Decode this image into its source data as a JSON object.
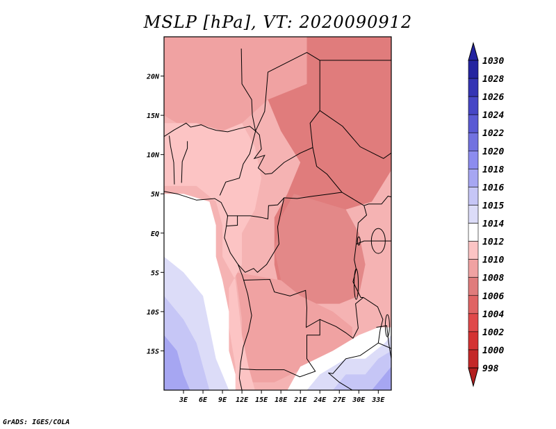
{
  "title": "MSLP [hPa], VT: 2020090912",
  "footer": "GrADS: IGES/COLA",
  "map": {
    "lon_range": [
      0,
      35
    ],
    "lat_range": [
      -20,
      25
    ],
    "x_ticks": [
      {
        "lon": 3,
        "label": "3E"
      },
      {
        "lon": 6,
        "label": "6E"
      },
      {
        "lon": 9,
        "label": "9E"
      },
      {
        "lon": 12,
        "label": "12E"
      },
      {
        "lon": 15,
        "label": "15E"
      },
      {
        "lon": 18,
        "label": "18E"
      },
      {
        "lon": 21,
        "label": "21E"
      },
      {
        "lon": 24,
        "label": "24E"
      },
      {
        "lon": 27,
        "label": "27E"
      },
      {
        "lon": 30,
        "label": "30E"
      },
      {
        "lon": 33,
        "label": "33E"
      }
    ],
    "y_ticks": [
      {
        "lat": 20,
        "label": "20N"
      },
      {
        "lat": 15,
        "label": "15N"
      },
      {
        "lat": 10,
        "label": "10N"
      },
      {
        "lat": 5,
        "label": "5N"
      },
      {
        "lat": 0,
        "label": "EQ"
      },
      {
        "lat": -5,
        "label": "5S"
      },
      {
        "lat": -10,
        "label": "10S"
      },
      {
        "lat": -15,
        "label": "15S"
      }
    ],
    "field_regions": [
      {
        "name": "northeast-low",
        "pressure": 1005,
        "color": "#e0494a",
        "polygon": [
          [
            29,
            20
          ],
          [
            32,
            19
          ],
          [
            34,
            20
          ],
          [
            35,
            23
          ],
          [
            35,
            25
          ],
          [
            33,
            25
          ],
          [
            31,
            24
          ],
          [
            29,
            22
          ]
        ]
      },
      {
        "name": "sahara-trough",
        "pressure": 1007,
        "color": "#e07c7c",
        "polygon": [
          [
            22,
            25
          ],
          [
            35,
            25
          ],
          [
            35,
            8
          ],
          [
            32,
            4
          ],
          [
            28,
            3
          ],
          [
            26,
            0
          ],
          [
            24,
            -3
          ],
          [
            21,
            -7
          ],
          [
            18,
            -8
          ],
          [
            17,
            -4
          ],
          [
            17,
            2
          ],
          [
            19,
            5
          ],
          [
            21,
            9
          ],
          [
            18,
            13
          ],
          [
            16,
            17
          ],
          [
            13,
            18
          ],
          [
            10,
            18
          ],
          [
            6,
            19
          ],
          [
            4,
            20
          ],
          [
            2,
            22
          ],
          [
            3,
            25
          ]
        ]
      },
      {
        "name": "congo-basin-low",
        "pressure": 1008,
        "color": "#e38888",
        "polygon": [
          [
            20,
            5
          ],
          [
            24,
            4
          ],
          [
            28,
            3
          ],
          [
            30,
            0
          ],
          [
            31,
            -4
          ],
          [
            30,
            -8
          ],
          [
            27,
            -9
          ],
          [
            23,
            -9
          ],
          [
            20,
            -8
          ],
          [
            18,
            -6
          ],
          [
            17,
            -2
          ],
          [
            18,
            2
          ]
        ]
      },
      {
        "name": "central-africa",
        "pressure": 1009,
        "color": "#f0a2a2",
        "polygon": [
          [
            0,
            25
          ],
          [
            22,
            25
          ],
          [
            22,
            19
          ],
          [
            16,
            17
          ],
          [
            12,
            14
          ],
          [
            9,
            13
          ],
          [
            5,
            14
          ],
          [
            2,
            14
          ],
          [
            0,
            15
          ]
        ]
      },
      {
        "name": "angola-region",
        "pressure": 1009,
        "color": "#f0a2a2",
        "polygon": [
          [
            11,
            -5
          ],
          [
            18,
            -6
          ],
          [
            21,
            -8
          ],
          [
            26,
            -10
          ],
          [
            29,
            -12
          ],
          [
            29,
            -14
          ],
          [
            26,
            -16
          ],
          [
            22,
            -17
          ],
          [
            17,
            -19
          ],
          [
            13,
            -19
          ],
          [
            12,
            -16
          ],
          [
            12,
            -11
          ]
        ]
      },
      {
        "name": "gulf-coast-band",
        "pressure": 1011,
        "color": "#fcc4c4",
        "polygon": [
          [
            0,
            14
          ],
          [
            5,
            14
          ],
          [
            9,
            13
          ],
          [
            12,
            14
          ],
          [
            14,
            11
          ],
          [
            15,
            7
          ],
          [
            14,
            3
          ],
          [
            12,
            0
          ],
          [
            12,
            -4
          ],
          [
            10,
            -7
          ],
          [
            10,
            -12
          ],
          [
            11,
            -17
          ],
          [
            11,
            -20
          ],
          [
            14,
            -20
          ],
          [
            13,
            -17
          ],
          [
            12,
            -13
          ],
          [
            11,
            -6
          ],
          [
            9,
            -3
          ],
          [
            9,
            1
          ],
          [
            8,
            4
          ],
          [
            5,
            6
          ],
          [
            2,
            6
          ],
          [
            0,
            6
          ]
        ]
      },
      {
        "name": "atlantic-coast-white",
        "pressure": 1014,
        "color": "#ffffff",
        "polygon": [
          [
            0,
            5
          ],
          [
            3,
            5
          ],
          [
            7,
            4
          ],
          [
            8,
            1
          ],
          [
            8,
            -3
          ],
          [
            9,
            -6
          ],
          [
            10,
            -10
          ],
          [
            10,
            -15
          ],
          [
            11,
            -18
          ],
          [
            11,
            -20
          ],
          [
            0,
            -20
          ]
        ]
      },
      {
        "name": "atlantic-pale-blue",
        "pressure": 1015,
        "color": "#dcdcf8",
        "polygon": [
          [
            0,
            -3
          ],
          [
            3,
            -5
          ],
          [
            6,
            -8
          ],
          [
            7,
            -12
          ],
          [
            8,
            -16
          ],
          [
            10,
            -20
          ],
          [
            0,
            -20
          ]
        ]
      },
      {
        "name": "atlantic-light-blue",
        "pressure": 1016,
        "color": "#c6c6f6",
        "polygon": [
          [
            0,
            -8
          ],
          [
            3,
            -11
          ],
          [
            5,
            -14
          ],
          [
            6,
            -17
          ],
          [
            7,
            -20
          ],
          [
            0,
            -20
          ]
        ]
      },
      {
        "name": "atlantic-blue",
        "pressure": 1018,
        "color": "#a6a6f2",
        "polygon": [
          [
            0,
            -13
          ],
          [
            2,
            -15
          ],
          [
            3,
            -18
          ],
          [
            4,
            -20
          ],
          [
            0,
            -20
          ]
        ]
      },
      {
        "name": "southern-africa-white",
        "pressure": 1014,
        "color": "#ffffff",
        "polygon": [
          [
            19,
            -20
          ],
          [
            21,
            -17
          ],
          [
            26,
            -15
          ],
          [
            30,
            -13
          ],
          [
            33,
            -12
          ],
          [
            35,
            -12
          ],
          [
            35,
            -20
          ]
        ]
      },
      {
        "name": "southern-africa-pale",
        "pressure": 1015,
        "color": "#dcdcf8",
        "polygon": [
          [
            22,
            -20
          ],
          [
            24,
            -18
          ],
          [
            28,
            -16
          ],
          [
            31,
            -16
          ],
          [
            34,
            -14
          ],
          [
            35,
            -13
          ],
          [
            35,
            -20
          ]
        ]
      },
      {
        "name": "southern-africa-blue",
        "pressure": 1016,
        "color": "#c6c6f6",
        "polygon": [
          [
            26,
            -20
          ],
          [
            28,
            -18
          ],
          [
            31,
            -18
          ],
          [
            33,
            -16
          ],
          [
            35,
            -15
          ],
          [
            35,
            -20
          ]
        ]
      },
      {
        "name": "southeast-corner-blue",
        "pressure": 1018,
        "color": "#a6a6f2",
        "polygon": [
          [
            32,
            -20
          ],
          [
            34,
            -18
          ],
          [
            35,
            -17
          ],
          [
            35,
            -20
          ]
        ]
      }
    ]
  },
  "colorbar": {
    "levels": [
      "998",
      "1000",
      "1002",
      "1004",
      "1006",
      "1008",
      "1010",
      "1012",
      "1014",
      "1015",
      "1016",
      "1018",
      "1020",
      "1022",
      "1024",
      "1026",
      "1028",
      "1030"
    ],
    "colors": [
      "#b41f1f",
      "#c42828",
      "#d43232",
      "#e0494a",
      "#e06464",
      "#e07c7c",
      "#f0a2a2",
      "#fcc4c4",
      "#ffffff",
      "#dcdcf8",
      "#c6c6f6",
      "#a6a6f2",
      "#8c8cef",
      "#7272e0",
      "#5a5ad4",
      "#4646c6",
      "#3434b4",
      "#2424a0"
    ]
  }
}
